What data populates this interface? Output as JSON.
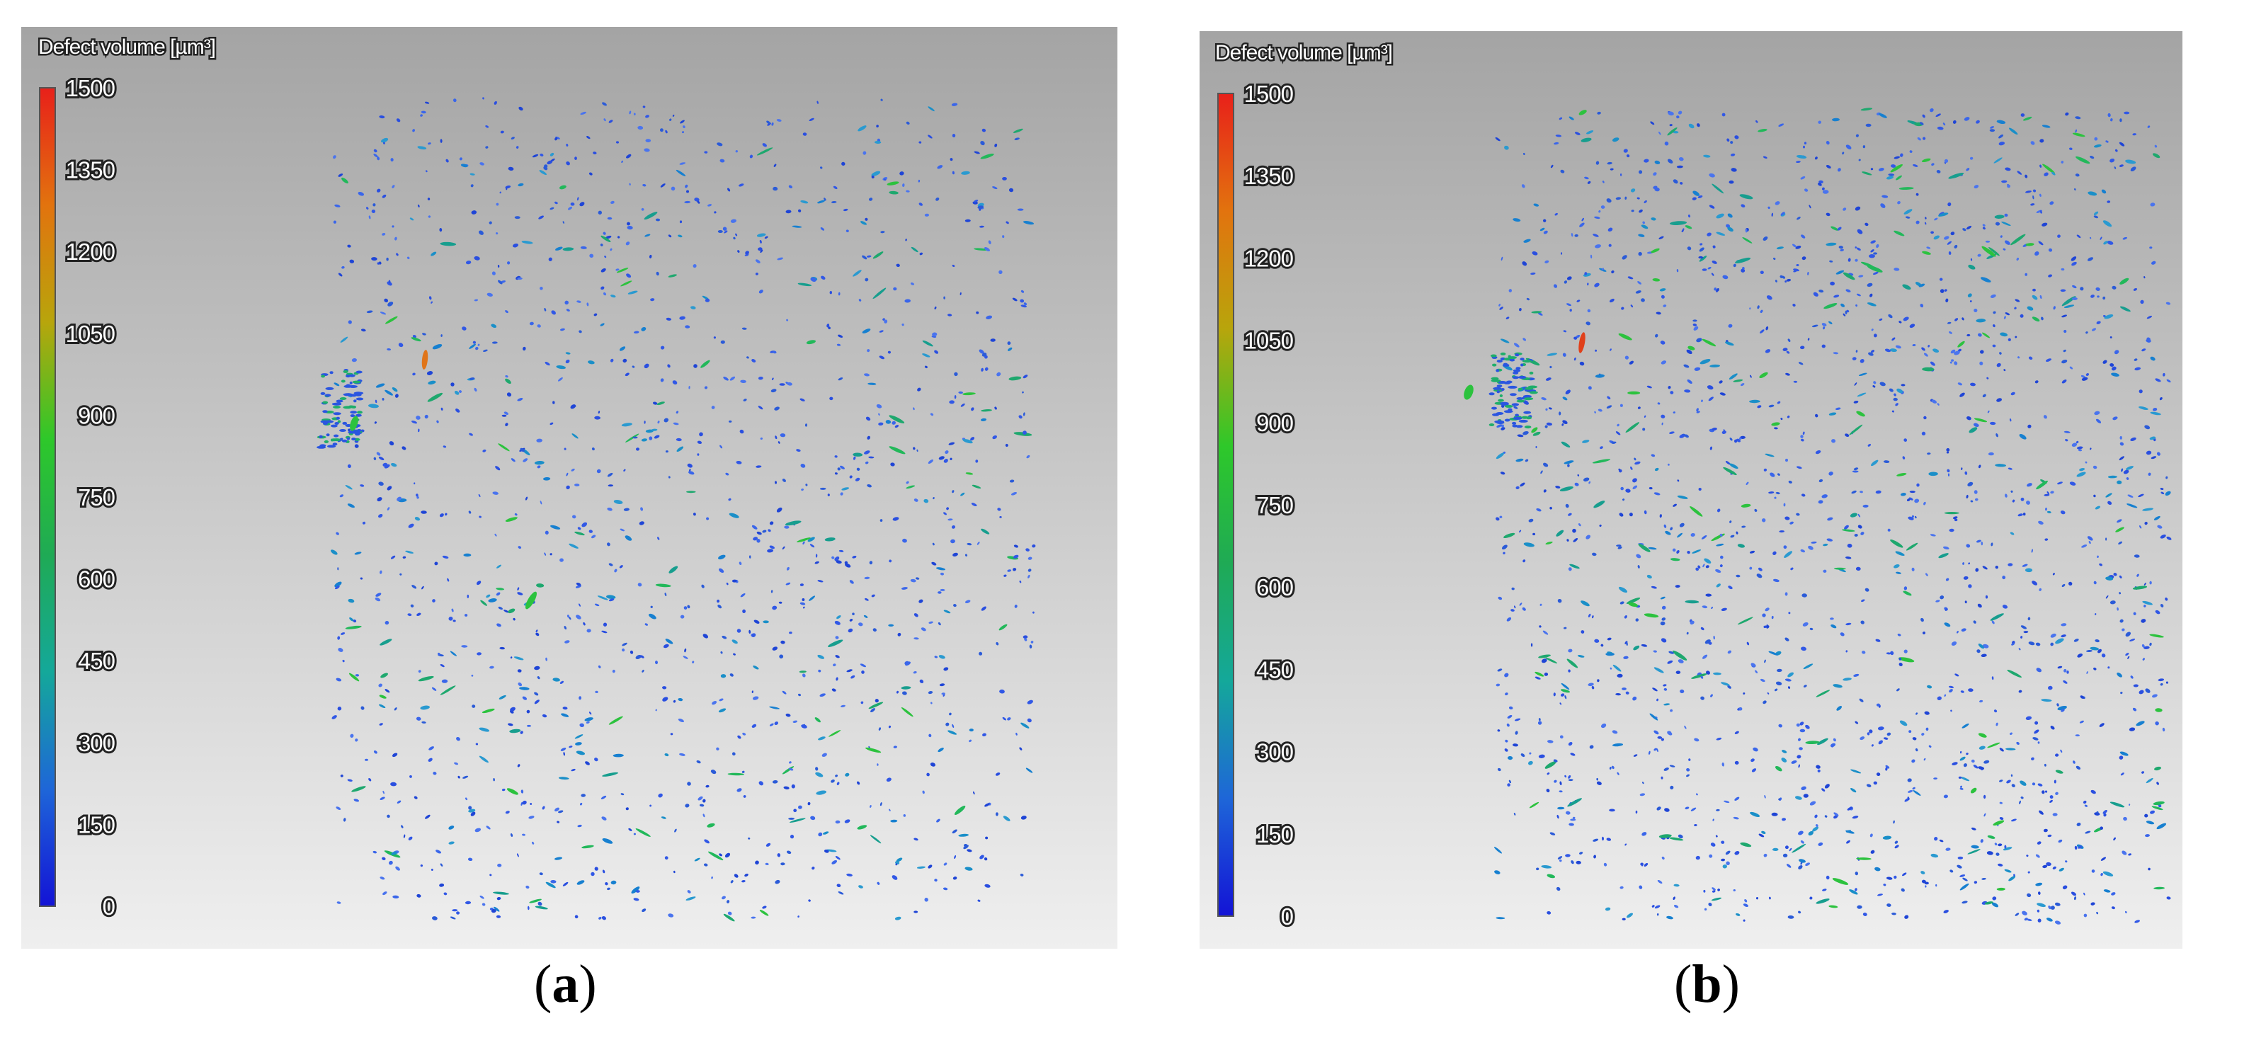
{
  "chart_data": [
    {
      "type": "scatter",
      "panel_label": "a",
      "legend_title": "Defect volume [µm³]",
      "colorbar": {
        "min": 0,
        "max": 1500,
        "ticks": [
          "1500",
          "1350",
          "1200",
          "1050",
          "900",
          "750",
          "600",
          "450",
          "300",
          "150",
          "0"
        ],
        "colors": [
          "#e8201a",
          "#e2730e",
          "#b8a50c",
          "#2ec82a",
          "#1faa55",
          "#14a89a",
          "#1e66d8",
          "#1313d6"
        ]
      },
      "background": {
        "top": "#a4a4a4",
        "bottom": "#efefef"
      },
      "defect_count_approx": 1400,
      "large_defects": [
        {
          "volume": 1300,
          "color": "#e07418"
        },
        {
          "volume": 900,
          "color": "#2cc23e"
        },
        {
          "volume": 800,
          "color": "#2cc23e"
        }
      ]
    },
    {
      "type": "scatter",
      "panel_label": "b",
      "legend_title": "Defect volume [µm³]",
      "colorbar": {
        "min": 0,
        "max": 1500,
        "ticks": [
          "1500",
          "1350",
          "1200",
          "1050",
          "900",
          "750",
          "600",
          "450",
          "300",
          "150",
          "0"
        ],
        "colors": [
          "#e8201a",
          "#e2730e",
          "#b8a50c",
          "#2ec82a",
          "#1faa55",
          "#14a89a",
          "#1e66d8",
          "#1313d6"
        ]
      },
      "background": {
        "top": "#a4a4a4",
        "bottom": "#efefef"
      },
      "defect_count_approx": 1900,
      "large_defects": [
        {
          "volume": 1400,
          "color": "#e0401a"
        },
        {
          "volume": 850,
          "color": "#2cc23e"
        }
      ]
    }
  ]
}
